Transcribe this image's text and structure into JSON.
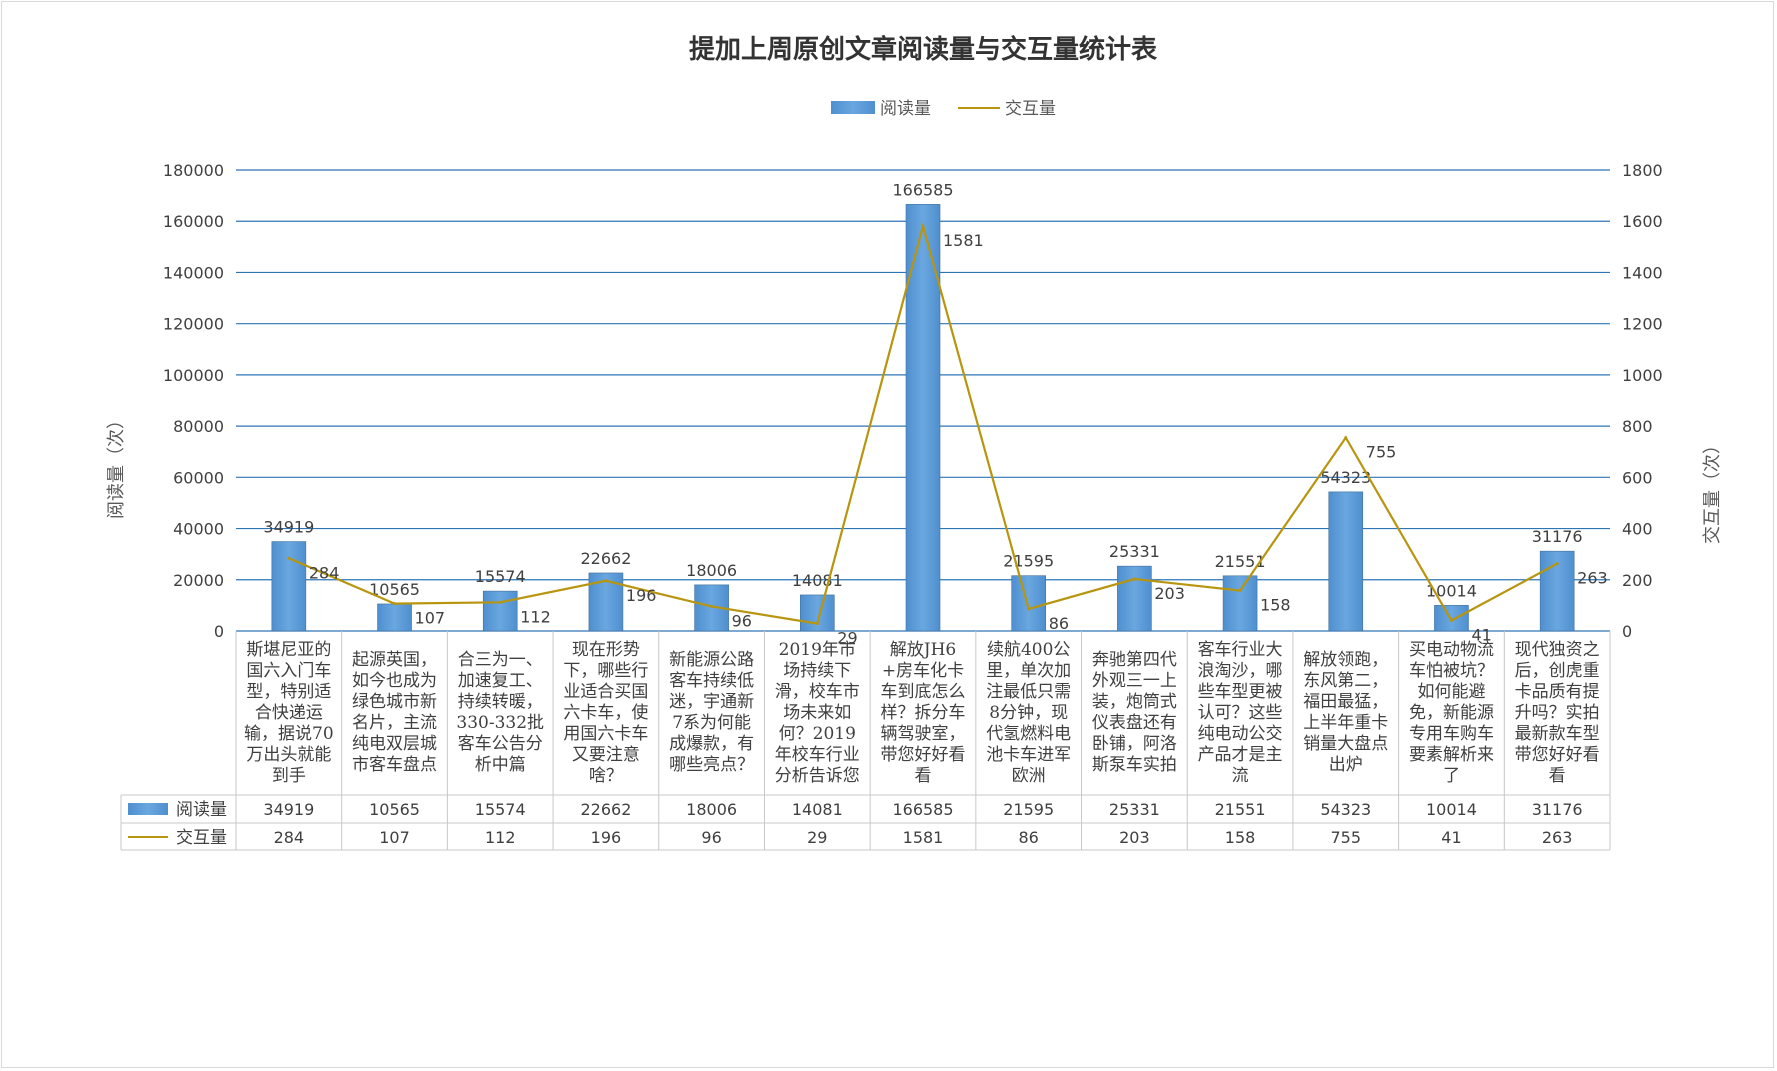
{
  "chart_data": {
    "type": "bar",
    "title": "提加上周原创文章阅读量与交互量统计表",
    "categories": [
      "斯堪尼亚的国六入门车型，特别适合快递运输，据说70万出头就能到手",
      "起源英国，如今也成为绿色城市新名片，主流纯电双层城市客车盘点",
      "合三为一、加速复工、持续转暖，330-332批客车公告分析中篇",
      "现在形势下，哪些行业适合买国六卡车，使用国六卡车又要注意啥？",
      "新能源公路客车持续低迷，宇通新7系为何能成爆款，有哪些亮点？",
      "2019年市场持续下滑，校车市场未来如何？2019年校车行业分析告诉您",
      "解放JH6+房车化卡车到底怎么样？拆分车辆驾驶室，带您好好看看",
      "续航400公里，单次加注最低只需8分钟，现代氢燃料电池卡车进军欧洲",
      "奔驰第四代外观三一上装，炮筒式仪表盘还有卧铺，阿洛斯泵车实拍",
      "客车行业大浪淘沙，哪些车型更被认可？这些纯电动公交产品才是主流",
      "解放领跑，东风第二，福田最猛，上半年重卡销量大盘点出炉",
      "买电动物流车怕被坑？如何能避免，新能源专用车购车要素解析来了",
      "现代独资之后，创虎重卡品质有提升吗？实拍最新款车型带您好好看看"
    ],
    "series": [
      {
        "name": "阅读量",
        "kind": "bar",
        "axis": "left",
        "color": "#5b9bd5",
        "values": [
          34919,
          10565,
          15574,
          22662,
          18006,
          14081,
          166585,
          21595,
          25331,
          21551,
          54323,
          10014,
          31176
        ]
      },
      {
        "name": "交互量",
        "kind": "line",
        "axis": "right",
        "color": "#b8950f",
        "values": [
          284,
          107,
          112,
          196,
          96,
          29,
          1581,
          86,
          203,
          158,
          755,
          41,
          263
        ]
      }
    ],
    "ylabel": "阅读量（次）",
    "y2label": "交互量（次）",
    "ylim": [
      0,
      180000
    ],
    "y2lim": [
      0,
      1800
    ],
    "yticks": [
      "0",
      "20000",
      "40000",
      "60000",
      "80000",
      "100000",
      "120000",
      "140000",
      "160000",
      "180000"
    ],
    "y2ticks": [
      "0",
      "200",
      "400",
      "600",
      "800",
      "1000",
      "1200",
      "1400",
      "1600",
      "1800"
    ],
    "grid": true,
    "legend": "top-center",
    "data_table": true
  }
}
